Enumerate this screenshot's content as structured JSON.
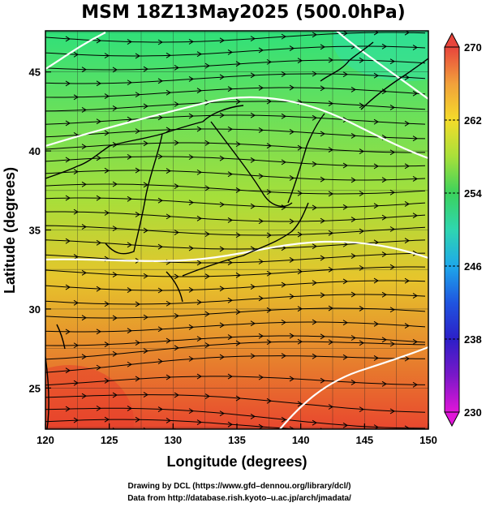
{
  "title": "MSM 18Z13May2025 (500.0hPa)",
  "x_axis": {
    "label": "Longitude (degrees)",
    "range": [
      120,
      150
    ],
    "ticks": [
      "120",
      "125",
      "130",
      "135",
      "140",
      "145",
      "150"
    ]
  },
  "y_axis": {
    "label": "Latitude  (degrees)",
    "range": [
      22.4,
      47.6
    ],
    "ticks": [
      "25",
      "30",
      "35",
      "40",
      "45"
    ]
  },
  "colorbar": {
    "min": 230,
    "max": 270,
    "labels": [
      "270",
      "262",
      "254",
      "246",
      "238",
      "230"
    ],
    "colors": [
      "#e8453c",
      "#f2a03b",
      "#f4dc2a",
      "#a8e03a",
      "#3bd25c",
      "#2fd6b0",
      "#1ea8ea",
      "#1f55e0",
      "#2c1fc8",
      "#7a18c8",
      "#e015d8"
    ]
  },
  "field_colors": {
    "north": "#2fe07a",
    "mid": "#a6df3a",
    "south_mid": "#e6c52c",
    "south": "#e8472e"
  },
  "credits": {
    "line1": "Drawing by DCL (https://www.gfd–dennou.org/library/dcl/)",
    "line2": "Data from http://database.rish.kyoto–u.ac.jp/arch/jmadata/"
  }
}
